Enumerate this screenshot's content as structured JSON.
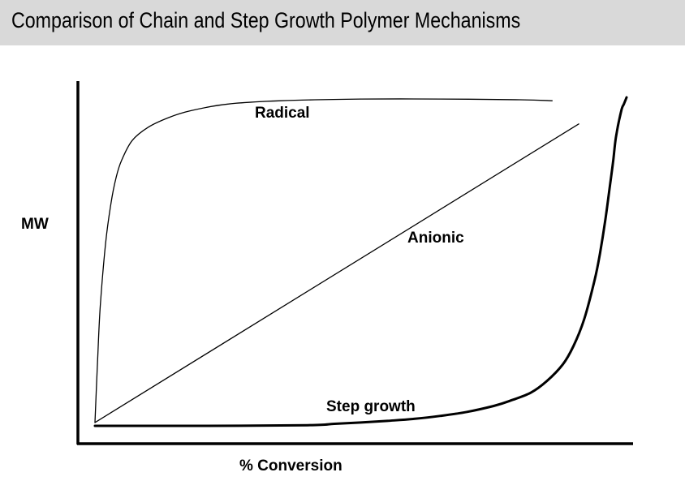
{
  "slide": {
    "title": "Comparison of Chain and Step Growth Polymer Mechanisms",
    "background": "#d9d9d9"
  },
  "chart_data": {
    "type": "line",
    "title": "",
    "xlabel": "% Conversion",
    "ylabel": "MW",
    "xlim": [
      0,
      100
    ],
    "ylim": [
      0,
      100
    ],
    "grid": false,
    "legend": "none",
    "ticks": false,
    "series": [
      {
        "name": "Radical",
        "stroke": "thin",
        "x": [
          0,
          0.5,
          1,
          2,
          3,
          4,
          5,
          7,
          10,
          14,
          18,
          25,
          35,
          50,
          65,
          80,
          86
        ],
        "y": [
          1,
          20,
          36,
          55,
          67,
          75,
          80,
          86,
          90,
          93,
          95,
          97,
          98,
          98.5,
          98.5,
          98.3,
          98
        ]
      },
      {
        "name": "Anionic",
        "stroke": "thin",
        "x": [
          0,
          91
        ],
        "y": [
          1,
          91
        ]
      },
      {
        "name": "Step growth",
        "stroke": "thick",
        "x": [
          0,
          20,
          40,
          45,
          50,
          55,
          60,
          65,
          70,
          75,
          78,
          82,
          85,
          88,
          90,
          92,
          94,
          95,
          96,
          97,
          97.5,
          98,
          99,
          99.5,
          100
        ],
        "y": [
          0,
          0,
          0.2,
          0.6,
          1,
          1.5,
          2.1,
          3,
          4.2,
          6,
          7.5,
          10,
          13.5,
          18.5,
          24,
          32,
          44,
          52,
          62,
          74,
          80,
          87,
          95,
          97,
          99
        ]
      }
    ]
  }
}
